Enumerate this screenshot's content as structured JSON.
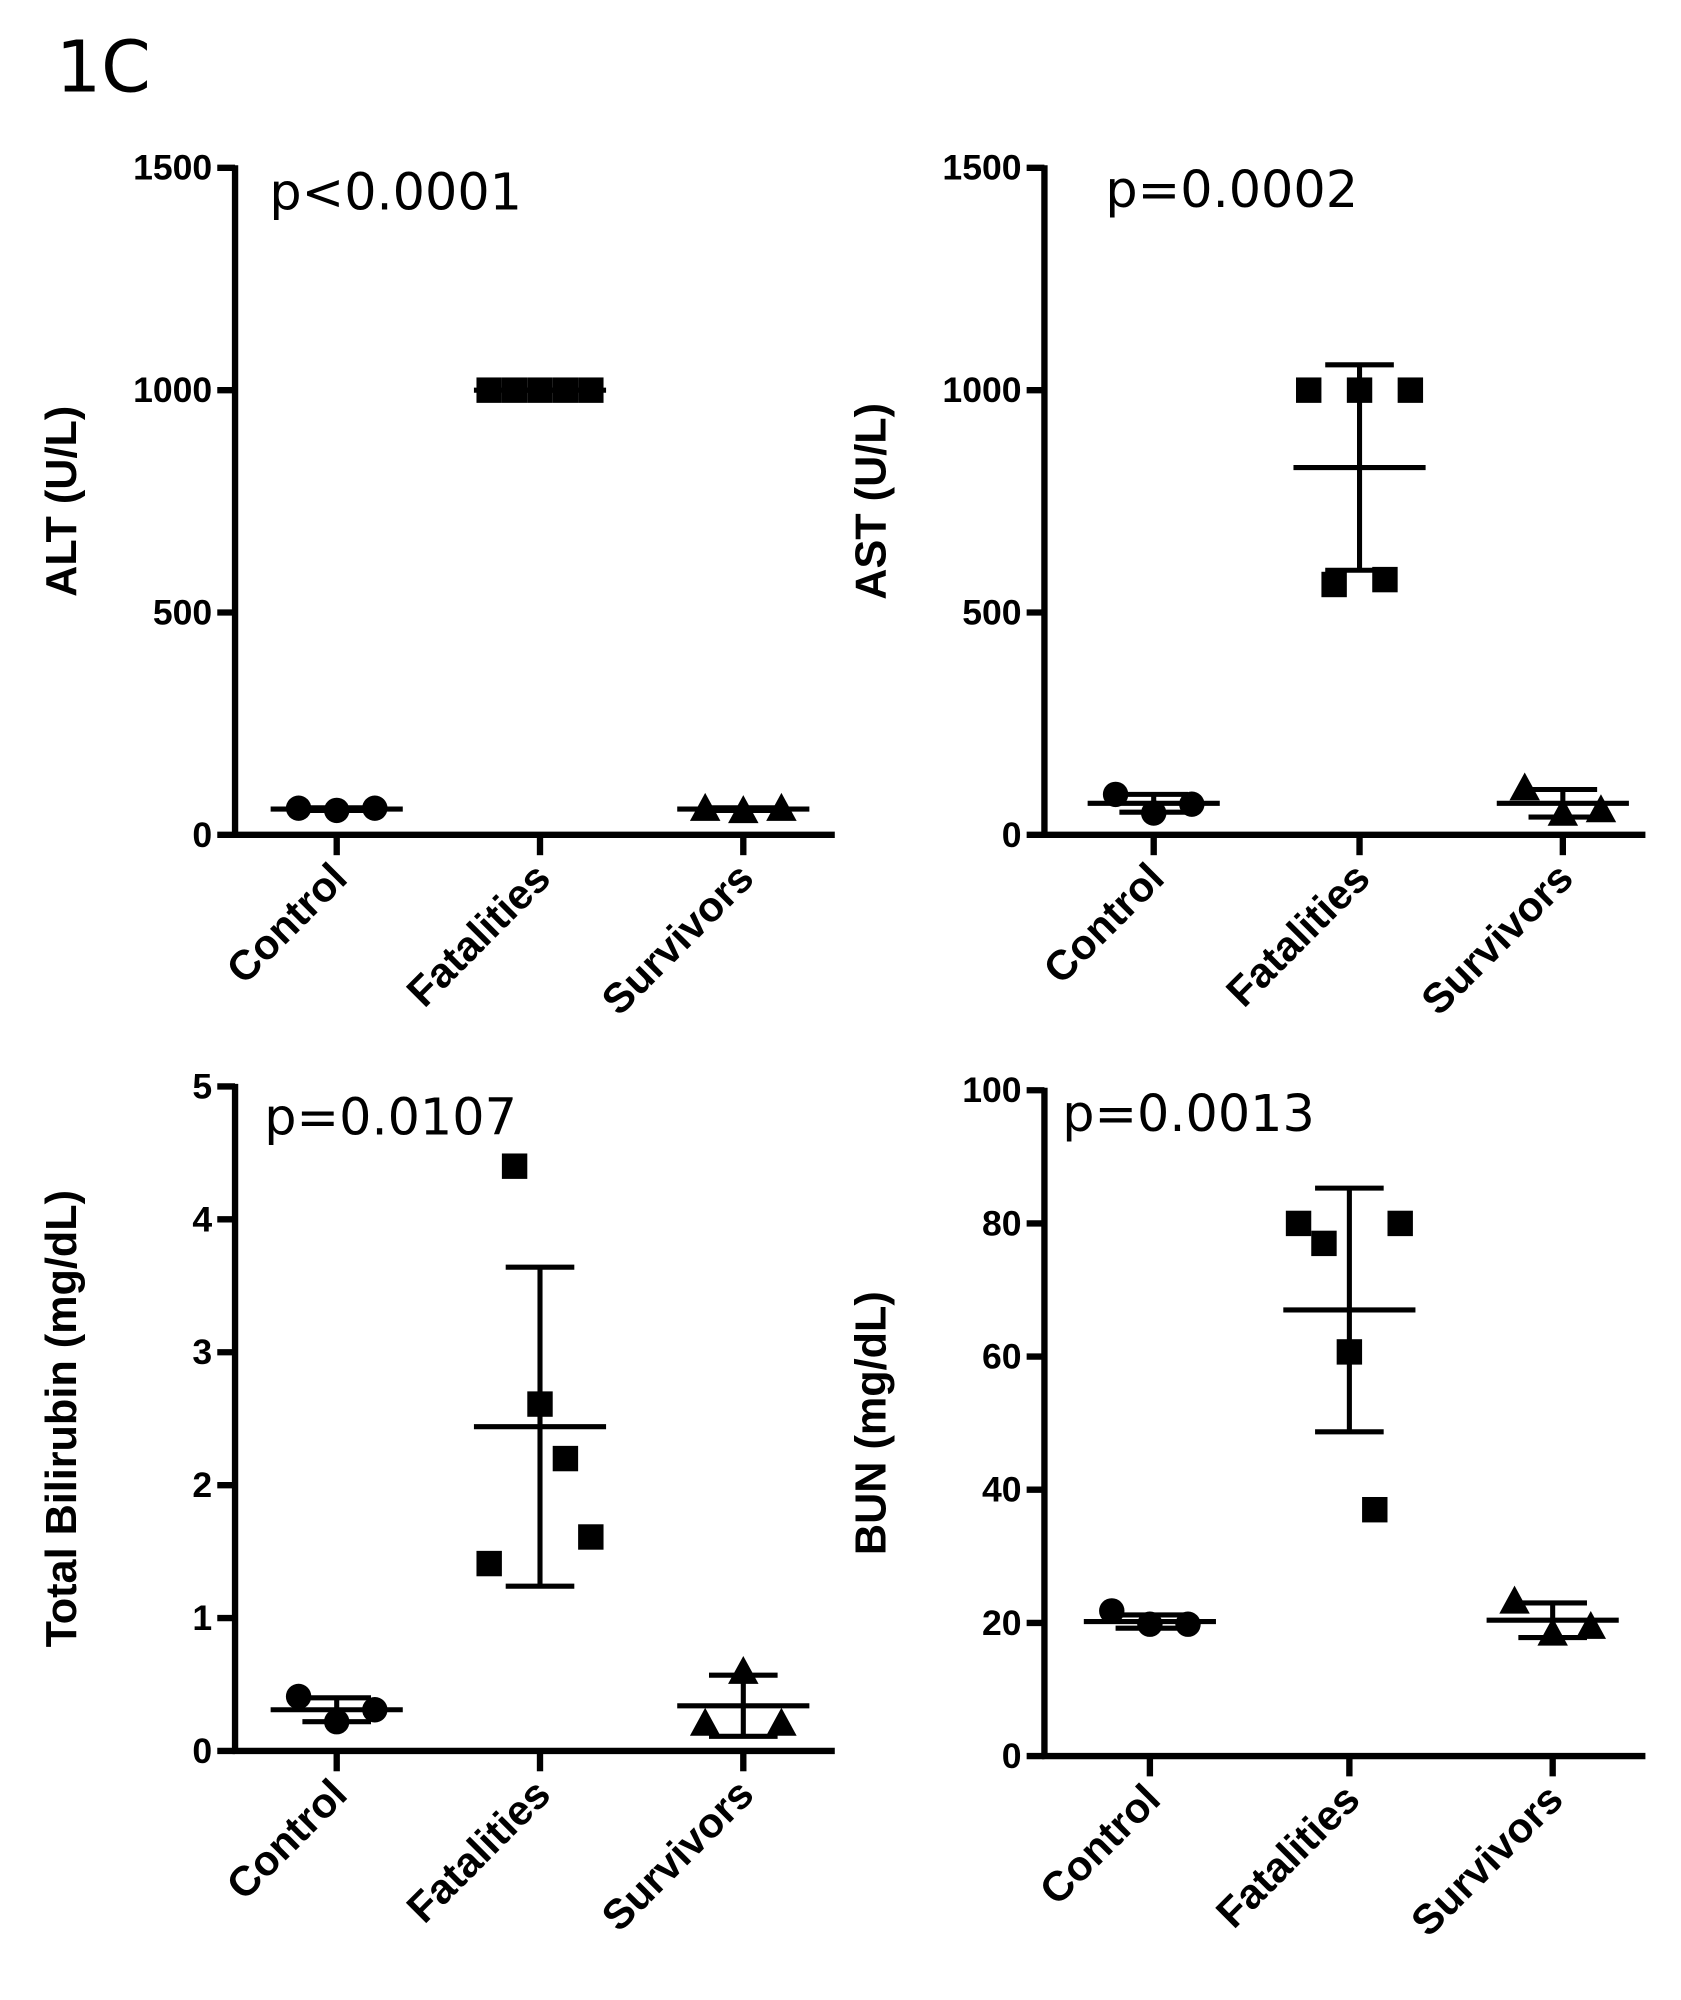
{
  "figure_label": "1C",
  "chart_data": [
    {
      "type": "dot",
      "ylabel": "ALT (U/L)",
      "annotation": "p<0.0001",
      "categories": [
        "Control",
        "Fatalities",
        "Survivors"
      ],
      "markers": [
        "circle",
        "square",
        "triangle"
      ],
      "color": "#000000",
      "ylim": [
        0,
        1500
      ],
      "yticks": [
        0,
        500,
        1000,
        1500
      ],
      "groups": [
        {
          "points": [
            60,
            55,
            60
          ],
          "mean": 58,
          "sd": 3
        },
        {
          "points": [
            1000,
            1000,
            1000,
            1000,
            1000
          ],
          "mean": 1000,
          "sd": 0
        },
        {
          "points": [
            60,
            55,
            60
          ],
          "mean": 58,
          "sd": 3
        }
      ]
    },
    {
      "type": "dot",
      "ylabel": "AST (U/L)",
      "annotation": "p=0.0002",
      "categories": [
        "Control",
        "Fatalities",
        "Survivors"
      ],
      "markers": [
        "circle",
        "square",
        "triangle"
      ],
      "color": "#000000",
      "ylim": [
        0,
        1500
      ],
      "yticks": [
        0,
        500,
        1000,
        1500
      ],
      "groups": [
        {
          "points": [
            91,
            49,
            69
          ],
          "mean": 71,
          "sd": 20
        },
        {
          "points": [
            1000,
            563,
            1000,
            574,
            1000
          ],
          "mean": 826,
          "sd": 231
        },
        {
          "points": [
            106,
            49,
            57
          ],
          "mean": 71,
          "sd": 31
        }
      ]
    },
    {
      "type": "dot",
      "ylabel": "Total Bilirubin (mg/dL)",
      "annotation": "p=0.0107",
      "categories": [
        "Control",
        "Fatalities",
        "Survivors"
      ],
      "markers": [
        "circle",
        "square",
        "triangle"
      ],
      "color": "#000000",
      "ylim": [
        0,
        5
      ],
      "yticks": [
        0,
        1,
        2,
        3,
        4,
        5
      ],
      "groups": [
        {
          "points": [
            0.41,
            0.22,
            0.31
          ],
          "mean": 0.31,
          "sd": 0.09
        },
        {
          "points": [
            1.41,
            4.4,
            2.61,
            2.2,
            1.61
          ],
          "mean": 2.44,
          "sd": 1.2
        },
        {
          "points": [
            0.21,
            0.6,
            0.21
          ],
          "mean": 0.34,
          "sd": 0.23
        }
      ]
    },
    {
      "type": "dot",
      "ylabel": "BUN (mg/dL)",
      "annotation": "p=0.0013",
      "categories": [
        "Control",
        "Fatalities",
        "Survivors"
      ],
      "markers": [
        "circle",
        "square",
        "triangle"
      ],
      "color": "#000000",
      "ylim": [
        0,
        100
      ],
      "yticks": [
        0,
        20,
        40,
        60,
        80,
        100
      ],
      "groups": [
        {
          "points": [
            21.8,
            19.8,
            19.8
          ],
          "mean": 20.2,
          "sd": 1
        },
        {
          "points": [
            80,
            77,
            60.7,
            37,
            80
          ],
          "mean": 67,
          "sd": 18.3
        },
        {
          "points": [
            23.3,
            18.5,
            19.5
          ],
          "mean": 20.4,
          "sd": 2.6
        }
      ]
    }
  ]
}
